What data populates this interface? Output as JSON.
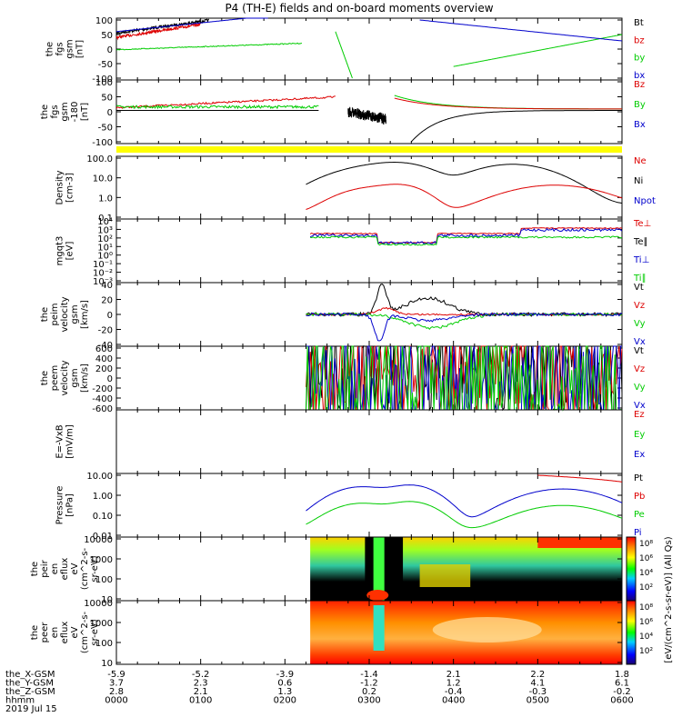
{
  "title": "P4 (TH-E) fields and on-board moments overview",
  "date": "2019 Jul 15",
  "colors": {
    "black": "#000000",
    "red": "#dd0000",
    "green": "#00cc00",
    "blue": "#0000cc",
    "yellow": "#ffff00"
  },
  "time_axis": {
    "major_ticks": [
      "0000",
      "0100",
      "0200",
      "0300",
      "0400",
      "0500",
      "0600"
    ],
    "rows": [
      {
        "label": "the_X-GSM",
        "values": [
          "-5.9",
          "-5.2",
          "-3.9",
          "-1.4",
          "2.1",
          "2.2",
          "1.8"
        ]
      },
      {
        "label": "the_Y-GSM",
        "values": [
          "3.7",
          "2.3",
          "0.6",
          "-1.2",
          "1.2",
          "4.1",
          "6.1"
        ]
      },
      {
        "label": "the_Z-GSM",
        "values": [
          "2.8",
          "2.1",
          "1.3",
          "0.2",
          "-0.4",
          "-0.3",
          "-0.2"
        ]
      },
      {
        "label": "hhmm",
        "values": [
          "0000",
          "0100",
          "0200",
          "0300",
          "0400",
          "0500",
          "0600"
        ]
      }
    ]
  },
  "chart_data": [
    {
      "type": "line",
      "id": "fgs_gsm",
      "ylabel": [
        "the",
        "fgs",
        "gsm",
        "[nT]"
      ],
      "yticks": [
        "100",
        "50",
        "0",
        "-50",
        "-100"
      ],
      "ylim": [
        -100,
        100
      ],
      "legend": [
        {
          "name": "Bt",
          "color": "#000000"
        },
        {
          "name": "bz",
          "color": "#dd0000"
        },
        {
          "name": "by",
          "color": "#00cc00"
        },
        {
          "name": "bx",
          "color": "#0000cc"
        }
      ]
    },
    {
      "type": "line",
      "id": "fgs_gsm_100",
      "ylabel": [
        "the",
        "fgs",
        "gsm",
        "-180",
        "[nT]"
      ],
      "yticks": [
        "100",
        "50",
        "0",
        "-50",
        "-100"
      ],
      "ylim": [
        -120,
        100
      ],
      "legend": [
        {
          "name": "Bz",
          "color": "#dd0000"
        },
        {
          "name": "By",
          "color": "#00cc00"
        },
        {
          "name": "Bx",
          "color": "#0000cc"
        }
      ]
    },
    {
      "type": "line",
      "id": "density",
      "ylabel": [
        "Density",
        "[cm-3]"
      ],
      "yticks": [
        "100.0",
        "10.0",
        "1.0",
        "0.1"
      ],
      "ylim": [
        0.1,
        200
      ],
      "legend": [
        {
          "name": "Ne",
          "color": "#dd0000"
        },
        {
          "name": "Ni",
          "color": "#000000"
        },
        {
          "name": "Npot",
          "color": "#0000cc"
        }
      ]
    },
    {
      "type": "line",
      "id": "temperature",
      "ylabel": [
        "mgqt3",
        "[eV]"
      ],
      "yticks": [
        "10⁴",
        "10³",
        "10²",
        "10¹",
        "10⁰",
        "10⁻¹",
        "10⁻²",
        "10⁻³"
      ],
      "ylim": [
        0.001,
        10000
      ],
      "legend": [
        {
          "name": "Te⊥",
          "color": "#dd0000"
        },
        {
          "name": "Te∥",
          "color": "#000000"
        },
        {
          "name": "Ti⊥",
          "color": "#0000cc"
        },
        {
          "name": "Ti∥",
          "color": "#00cc00"
        }
      ]
    },
    {
      "type": "line",
      "id": "peim_velocity",
      "ylabel": [
        "the",
        "peim",
        "velocity",
        "gsm",
        "[km/s]"
      ],
      "yticks": [
        "40",
        "20",
        "0",
        "-20",
        "-40"
      ],
      "ylim": [
        -40,
        40
      ],
      "legend": [
        {
          "name": "Vt",
          "color": "#000000"
        },
        {
          "name": "Vz",
          "color": "#dd0000"
        },
        {
          "name": "Vy",
          "color": "#00cc00"
        },
        {
          "name": "Vx",
          "color": "#0000cc"
        }
      ]
    },
    {
      "type": "line",
      "id": "peem_velocity",
      "ylabel": [
        "the",
        "peem",
        "velocity",
        "gsm",
        "[km/s]"
      ],
      "yticks": [
        "600",
        "400",
        "200",
        "0",
        "-200",
        "-400",
        "-600"
      ],
      "ylim": [
        -600,
        600
      ],
      "legend": [
        {
          "name": "Vt",
          "color": "#000000"
        },
        {
          "name": "Vz",
          "color": "#dd0000"
        },
        {
          "name": "Vy",
          "color": "#00cc00"
        },
        {
          "name": "Vx",
          "color": "#0000cc"
        }
      ]
    },
    {
      "type": "line",
      "id": "efield",
      "ylabel": [
        "E=-VxB",
        "[mV/m]"
      ],
      "yticks": [],
      "ylim": [
        -1,
        1
      ],
      "legend": [
        {
          "name": "Ez",
          "color": "#dd0000"
        },
        {
          "name": "Ey",
          "color": "#00cc00"
        },
        {
          "name": "Ex",
          "color": "#0000cc"
        }
      ]
    },
    {
      "type": "line",
      "id": "pressure",
      "ylabel": [
        "Pressure",
        "[nPa]"
      ],
      "yticks": [
        "10.00",
        "1.00",
        "0.10",
        "0.01"
      ],
      "ylim": [
        0.005,
        20
      ],
      "legend": [
        {
          "name": "Pt",
          "color": "#000000"
        },
        {
          "name": "Pb",
          "color": "#dd0000"
        },
        {
          "name": "Pe",
          "color": "#00cc00"
        },
        {
          "name": "Pi",
          "color": "#0000cc"
        }
      ]
    },
    {
      "type": "heatmap",
      "id": "peir",
      "ylabel": [
        "the",
        "peir",
        "en",
        "eflux",
        "eV",
        "(cm^2-s-",
        "sr-eV)"
      ],
      "yticks": [
        "10000",
        "1000",
        "100",
        "10"
      ],
      "ylim": [
        5,
        25000
      ]
    },
    {
      "type": "heatmap",
      "id": "peer",
      "ylabel": [
        "the",
        "peer",
        "en",
        "eflux",
        "eV",
        "(cm^2-s-",
        "sr-eV)"
      ],
      "yticks": [
        "10000",
        "1000",
        "100",
        "10"
      ],
      "ylim": [
        5,
        25000
      ]
    }
  ],
  "colorbar": {
    "ticks": [
      "10⁸",
      "10⁶",
      "10⁴",
      "10²"
    ],
    "label": "[eV/(cm^2-s-sr-eV)] (All Qs)"
  }
}
